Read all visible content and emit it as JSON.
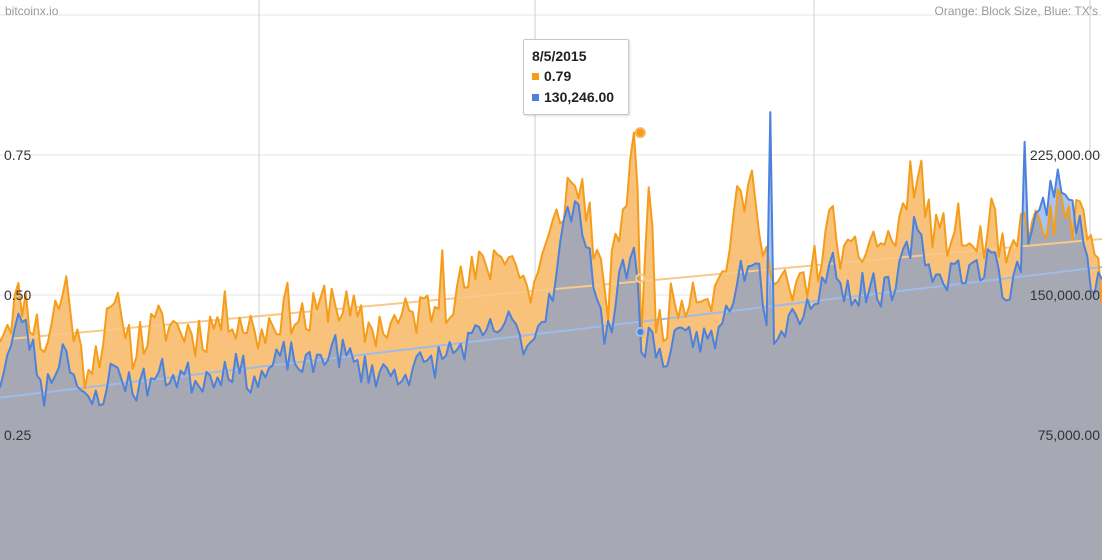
{
  "header": {
    "brand": "bitcoinx.io",
    "legend_note": "Orange: Block Size, Blue: TX's"
  },
  "tooltip": {
    "date": "8/5/2015",
    "block_size": "0.79",
    "txs": "130,246.00"
  },
  "colors": {
    "orange": "#f59d1b",
    "blue": "#4c82dc",
    "overlap_fill": "#a6a9b4",
    "orange_fill": "#f9c27a",
    "blue_fill": "#a9c4ef",
    "gridline": "#e6e6e6",
    "vline": "#cfcfcf"
  },
  "chart_data": {
    "type": "area",
    "left_axis": {
      "ticks": [
        0.25,
        0.5,
        0.75
      ],
      "tick_labels": [
        "0.25",
        "0.50",
        "0.75"
      ]
    },
    "right_axis": {
      "ticks": [
        75000,
        150000,
        225000
      ],
      "tick_labels": [
        "75,000.00",
        "150,000.00",
        "225,000.00"
      ]
    },
    "series": [
      {
        "axis": "left",
        "anchors": [
          [
            0,
            0.44
          ],
          [
            0.02,
            0.5
          ],
          [
            0.04,
            0.41
          ],
          [
            0.06,
            0.52
          ],
          [
            0.075,
            0.37
          ],
          [
            0.09,
            0.41
          ],
          [
            0.105,
            0.47
          ],
          [
            0.12,
            0.41
          ],
          [
            0.15,
            0.45
          ],
          [
            0.18,
            0.43
          ],
          [
            0.21,
            0.47
          ],
          [
            0.235,
            0.43
          ],
          [
            0.26,
            0.48
          ],
          [
            0.28,
            0.45
          ],
          [
            0.3,
            0.5
          ],
          [
            0.33,
            0.44
          ],
          [
            0.36,
            0.45
          ],
          [
            0.39,
            0.48
          ],
          [
            0.41,
            0.5
          ],
          [
            0.44,
            0.55
          ],
          [
            0.46,
            0.59
          ],
          [
            0.48,
            0.5
          ],
          [
            0.5,
            0.6
          ],
          [
            0.515,
            0.69
          ],
          [
            0.53,
            0.69
          ],
          [
            0.55,
            0.47
          ],
          [
            0.565,
            0.66
          ],
          [
            0.578,
            0.73
          ],
          [
            0.582,
            0.45
          ],
          [
            0.59,
            0.7
          ],
          [
            0.596,
            0.44
          ],
          [
            0.61,
            0.48
          ],
          [
            0.63,
            0.52
          ],
          [
            0.65,
            0.5
          ],
          [
            0.67,
            0.66
          ],
          [
            0.685,
            0.7
          ],
          [
            0.7,
            0.52
          ],
          [
            0.72,
            0.5
          ],
          [
            0.74,
            0.55
          ],
          [
            0.755,
            0.63
          ],
          [
            0.77,
            0.55
          ],
          [
            0.79,
            0.6
          ],
          [
            0.81,
            0.59
          ],
          [
            0.83,
            0.72
          ],
          [
            0.85,
            0.6
          ],
          [
            0.87,
            0.62
          ],
          [
            0.885,
            0.57
          ],
          [
            0.9,
            0.63
          ],
          [
            0.915,
            0.54
          ],
          [
            0.93,
            0.64
          ],
          [
            0.945,
            0.61
          ],
          [
            0.96,
            0.65
          ],
          [
            0.975,
            0.64
          ],
          [
            0.99,
            0.59
          ],
          [
            1,
            0.5
          ]
        ],
        "noise": 0.045,
        "spikes": [
          [
            0.05,
            0.49
          ],
          [
            0.11,
            0.46
          ],
          [
            0.4,
            0.58
          ],
          [
            0.44,
            0.55
          ],
          [
            0.575,
            0.79
          ],
          [
            0.835,
            0.74
          ]
        ],
        "points": 300,
        "seed": 11,
        "trend": [
          [
            0,
            0.42
          ],
          [
            1,
            0.6
          ]
        ]
      },
      {
        "axis": "right",
        "anchors": [
          [
            0,
            105000
          ],
          [
            0.02,
            140000
          ],
          [
            0.04,
            98000
          ],
          [
            0.06,
            125000
          ],
          [
            0.075,
            90000
          ],
          [
            0.09,
            95000
          ],
          [
            0.105,
            112000
          ],
          [
            0.12,
            100000
          ],
          [
            0.15,
            108000
          ],
          [
            0.18,
            105000
          ],
          [
            0.21,
            112000
          ],
          [
            0.235,
            104000
          ],
          [
            0.26,
            118000
          ],
          [
            0.28,
            110000
          ],
          [
            0.3,
            123000
          ],
          [
            0.33,
            110000
          ],
          [
            0.36,
            108000
          ],
          [
            0.39,
            113000
          ],
          [
            0.41,
            120000
          ],
          [
            0.44,
            128000
          ],
          [
            0.46,
            135000
          ],
          [
            0.48,
            123000
          ],
          [
            0.5,
            150000
          ],
          [
            0.515,
            195000
          ],
          [
            0.53,
            190000
          ],
          [
            0.55,
            122000
          ],
          [
            0.565,
            165000
          ],
          [
            0.578,
            170000
          ],
          [
            0.582,
            122000
          ],
          [
            0.59,
            130246
          ],
          [
            0.596,
            115000
          ],
          [
            0.61,
            122000
          ],
          [
            0.63,
            128000
          ],
          [
            0.65,
            125000
          ],
          [
            0.67,
            160000
          ],
          [
            0.685,
            175000
          ],
          [
            0.7,
            128000
          ],
          [
            0.72,
            140000
          ],
          [
            0.74,
            148000
          ],
          [
            0.755,
            168000
          ],
          [
            0.77,
            150000
          ],
          [
            0.79,
            155000
          ],
          [
            0.81,
            150000
          ],
          [
            0.83,
            185000
          ],
          [
            0.85,
            158000
          ],
          [
            0.87,
            165000
          ],
          [
            0.885,
            162000
          ],
          [
            0.9,
            170000
          ],
          [
            0.915,
            150000
          ],
          [
            0.93,
            175000
          ],
          [
            0.945,
            195000
          ],
          [
            0.96,
            215000
          ],
          [
            0.975,
            195000
          ],
          [
            0.99,
            160000
          ],
          [
            1,
            155000
          ]
        ],
        "noise": 9000,
        "spikes": [
          [
            0.7,
            248000
          ],
          [
            0.93,
            232000
          ]
        ],
        "points": 300,
        "seed": 23,
        "trend": [
          [
            0,
            95000
          ],
          [
            1,
            165000
          ]
        ]
      }
    ]
  }
}
